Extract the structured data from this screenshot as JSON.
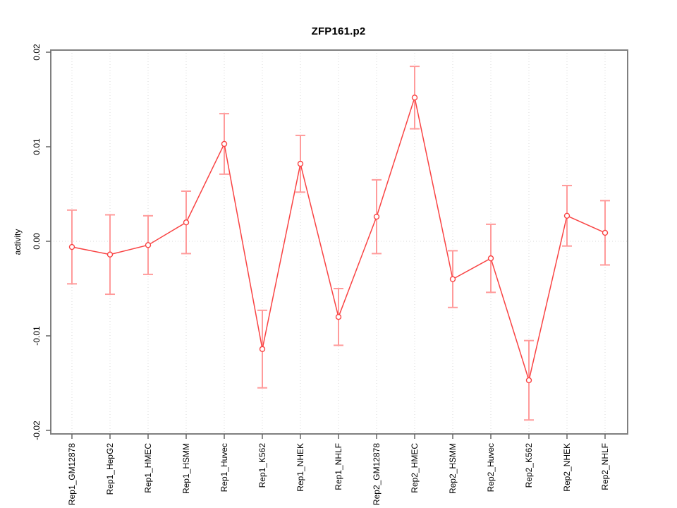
{
  "figure": {
    "title": "ZFP161.p2",
    "background": "#ffffff"
  },
  "chart_data": {
    "type": "line",
    "title": "ZFP161.p2",
    "xlabel": "",
    "ylabel": "activity",
    "categories": [
      "Rep1_GM12878",
      "Rep1_HepG2",
      "Rep1_HMEC",
      "Rep1_HSMM",
      "Rep1_Huvec",
      "Rep1_K562",
      "Rep1_NHEK",
      "Rep1_NHLF",
      "Rep2_GM12878",
      "Rep2_HMEC",
      "Rep2_HSMM",
      "Rep2_Huvec",
      "Rep2_K562",
      "Rep2_NHEK",
      "Rep2_NHLF"
    ],
    "series": [
      {
        "name": "activity",
        "values": [
          -0.0006,
          -0.0014,
          -0.0004,
          0.002,
          0.0103,
          -0.0114,
          0.0082,
          -0.008,
          0.0026,
          0.0152,
          -0.004,
          -0.0018,
          -0.0147,
          0.0027,
          0.0009
        ],
        "errors": [
          0.0039,
          0.0042,
          0.0031,
          0.0033,
          0.0032,
          0.0041,
          0.003,
          0.003,
          0.0039,
          0.0033,
          0.003,
          0.0036,
          0.0042,
          0.0032,
          0.0034
        ]
      }
    ],
    "ylim": [
      -0.02,
      0.02
    ],
    "yticks": [
      -0.02,
      -0.01,
      0,
      0.01,
      0.02
    ],
    "ytick_labels": [
      "-0.02",
      "-0.01",
      "0.00",
      "0.01",
      "0.02"
    ],
    "legend": "none",
    "marker": "open-circle",
    "grid": {
      "vertical": "dotted line at each category",
      "horizontal": "dotted line at 0.00 only"
    },
    "colors": {
      "line": "#f94343",
      "error_bar": "#ff9b9b",
      "marker_stroke": "#f94343",
      "marker_fill": "#ffffff",
      "grid": "#d8d8d8",
      "box": "#7f7f7f",
      "tick": "#666666",
      "text": "#000000"
    }
  }
}
